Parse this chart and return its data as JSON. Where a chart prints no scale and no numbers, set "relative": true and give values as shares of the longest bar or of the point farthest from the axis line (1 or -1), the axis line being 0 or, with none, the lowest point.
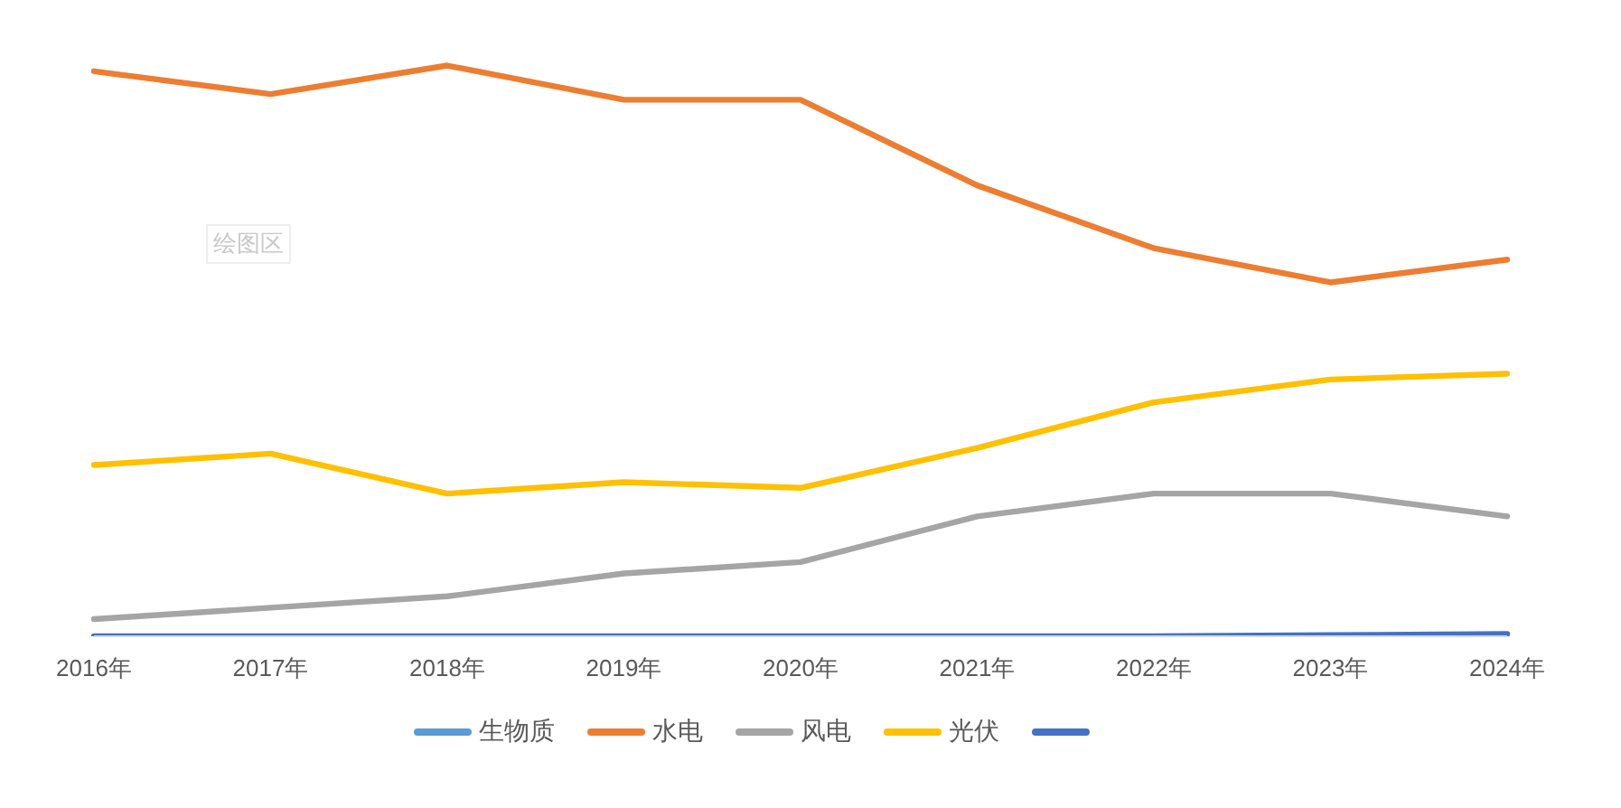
{
  "chart_data": {
    "type": "line",
    "categories": [
      "2016年",
      "2017年",
      "2018年",
      "2019年",
      "2020年",
      "2021年",
      "2022年",
      "2023年",
      "2024年"
    ],
    "series": [
      {
        "name": "生物质",
        "color": "#5b9bd5",
        "values": [
          null,
          null,
          null,
          null,
          null,
          null,
          null,
          null,
          null
        ]
      },
      {
        "name": "水电",
        "color": "#ed7d31",
        "values": [
          0.99,
          0.95,
          1,
          0.94,
          0.94,
          0.79,
          0.68,
          0.62,
          0.66
        ]
      },
      {
        "name": "风电",
        "color": "#a5a5a5",
        "values": [
          0.03,
          0.05,
          0.07,
          0.11,
          0.13,
          0.21,
          0.25,
          0.25,
          0.21
        ]
      },
      {
        "name": "光伏",
        "color": "#ffc000",
        "values": [
          0.3,
          0.32,
          0.25,
          0.27,
          0.26,
          0.33,
          0.41,
          0.45,
          0.46
        ]
      },
      {
        "color": "#4472c4",
        "values": [
          0,
          0,
          0,
          0,
          0,
          0,
          0,
          0.002,
          0.004
        ]
      }
    ],
    "relative": true,
    "legend": "bottom",
    "marker": "none",
    "line_style": "solid",
    "grid": false,
    "annotations": [
      "绘图区"
    ]
  }
}
